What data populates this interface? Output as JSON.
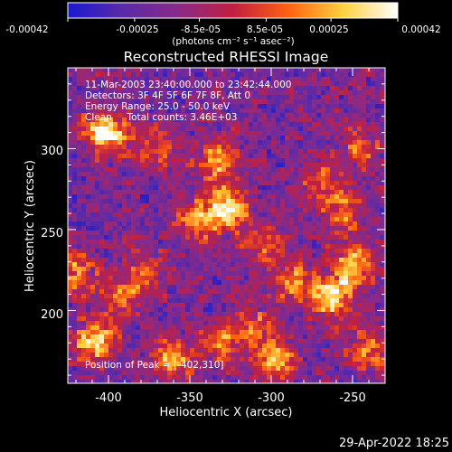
{
  "colorbar": {
    "ticks": [
      "-0.00042",
      "-0.00025",
      "-8.5e-05",
      "8.5e-05",
      "0.00025",
      "0.00042"
    ],
    "unit_label": "(photons cm⁻² s⁻¹ asec⁻²)",
    "colors": [
      "#1a1ad0",
      "#5a2aa8",
      "#8a2a88",
      "#c02040",
      "#ff6010",
      "#ffd040",
      "#ffffff"
    ]
  },
  "chart_data": {
    "type": "heatmap",
    "title": "Reconstructed RHESSI Image",
    "xlabel": "Heliocentric X (arcsec)",
    "ylabel": "Heliocentric Y (arcsec)",
    "xlim": [
      -425,
      -230
    ],
    "ylim": [
      155,
      350
    ],
    "xticks": [
      -400,
      -350,
      -300,
      -250
    ],
    "yticks": [
      200,
      250,
      300
    ],
    "xtick_labels": [
      "-400",
      "-350",
      "-300",
      "-250"
    ],
    "ytick_labels": [
      "200",
      "250",
      "300"
    ],
    "zlim": [
      -0.00042,
      0.00042
    ],
    "sources": [
      {
        "x": -402,
        "y": 310,
        "peak": 1.0
      },
      {
        "x": -327,
        "y": 263,
        "peak": 0.95
      },
      {
        "x": -333,
        "y": 292,
        "peak": 0.7
      },
      {
        "x": -347,
        "y": 255,
        "peak": 0.55
      },
      {
        "x": -286,
        "y": 218,
        "peak": 0.6
      },
      {
        "x": -262,
        "y": 208,
        "peak": 0.85
      },
      {
        "x": -250,
        "y": 228,
        "peak": 0.75
      },
      {
        "x": -257,
        "y": 262,
        "peak": 0.55
      },
      {
        "x": -270,
        "y": 280,
        "peak": 0.45
      },
      {
        "x": -245,
        "y": 300,
        "peak": 0.45
      },
      {
        "x": -408,
        "y": 180,
        "peak": 0.85
      },
      {
        "x": -392,
        "y": 208,
        "peak": 0.6
      },
      {
        "x": -420,
        "y": 225,
        "peak": 0.6
      },
      {
        "x": -360,
        "y": 170,
        "peak": 0.7
      },
      {
        "x": -330,
        "y": 180,
        "peak": 0.55
      },
      {
        "x": -298,
        "y": 170,
        "peak": 0.7
      },
      {
        "x": -310,
        "y": 190,
        "peak": 0.45
      },
      {
        "x": -372,
        "y": 300,
        "peak": 0.45
      },
      {
        "x": -305,
        "y": 240,
        "peak": 0.45
      },
      {
        "x": -240,
        "y": 175,
        "peak": 0.55
      },
      {
        "x": -378,
        "y": 225,
        "peak": 0.4
      }
    ],
    "annotations": {
      "line1": "11-Mar-2003 23:40:00.000 to 23:42:44.000",
      "line2": "Detectors: 3F 4F 5F 6F 7F 8F, Att 0",
      "line3": "Energy Range: 25.0 - 50.0 keV",
      "line4": "Clean     Total counts: 3.46E+03",
      "peak": "Position of Peak = [-402,310]"
    }
  },
  "footer": {
    "timestamp": "29-Apr-2022 18:25"
  }
}
